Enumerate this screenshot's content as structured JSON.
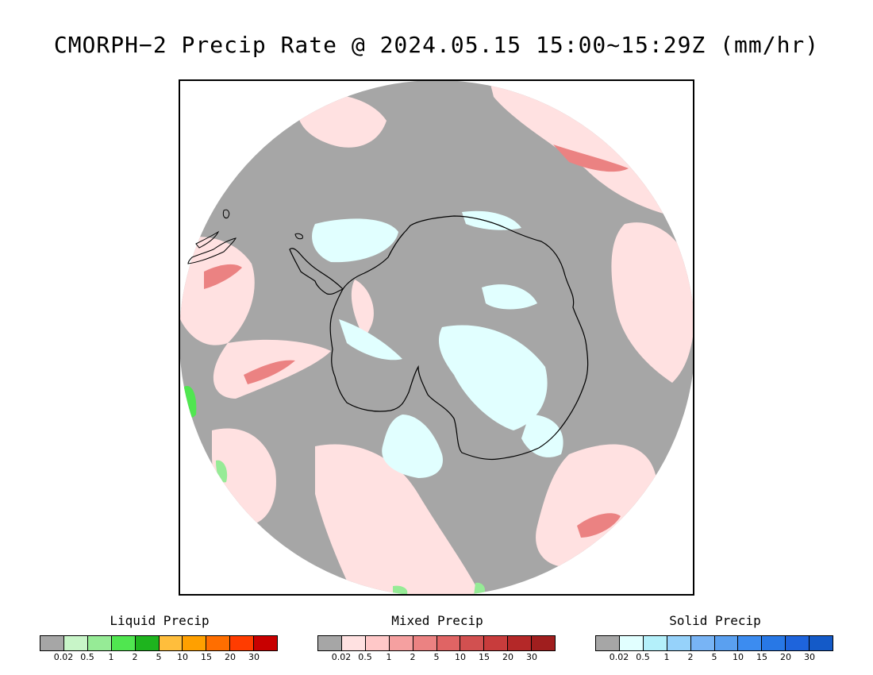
{
  "title": "CMORPH−2 Precip Rate @ 2024.05.15 15:00~15:29Z (mm/hr)",
  "legends": [
    {
      "label": "Liquid Precip",
      "colors": [
        "#a6a6a6",
        "#c8f5c8",
        "#96eb96",
        "#50e650",
        "#1eb41e",
        "#ffbe3c",
        "#ffa000",
        "#ff6e00",
        "#ff3c00",
        "#c80000"
      ],
      "ticks": [
        "0.02",
        "0.5",
        "1",
        "2",
        "5",
        "10",
        "15",
        "20",
        "30"
      ]
    },
    {
      "label": "Mixed Precip",
      "colors": [
        "#a6a6a6",
        "#ffe1e1",
        "#ffc8c8",
        "#f5a0a0",
        "#eb8282",
        "#e06464",
        "#d25050",
        "#c83c3c",
        "#b42828",
        "#a01e1e"
      ],
      "ticks": [
        "0.02",
        "0.5",
        "1",
        "2",
        "5",
        "10",
        "15",
        "20",
        "30"
      ]
    },
    {
      "label": "Solid Precip",
      "colors": [
        "#a6a6a6",
        "#e1ffff",
        "#b4f0fa",
        "#96d2fa",
        "#78b4f5",
        "#5aa0f0",
        "#3c8cf0",
        "#2878e6",
        "#1e64dc",
        "#145ac8"
      ],
      "ticks": [
        "0.02",
        "0.5",
        "1",
        "2",
        "5",
        "10",
        "15",
        "20",
        "30"
      ]
    }
  ],
  "map": {
    "projection": "south-polar-stereographic",
    "background_color": "#a6a6a6",
    "coastline_color": "#000000"
  }
}
